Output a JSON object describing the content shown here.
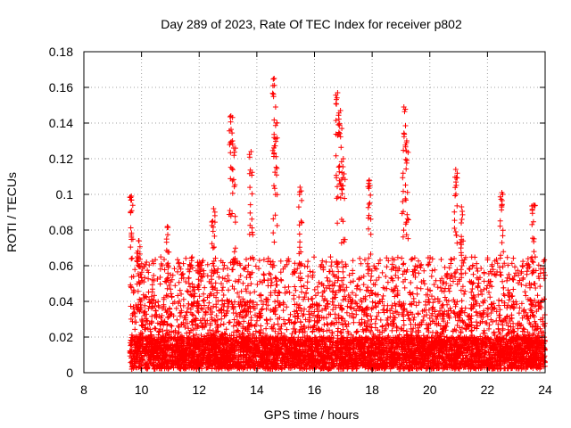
{
  "chart_data": {
    "type": "scatter",
    "title": "Day 289 of 2023, Rate Of TEC Index for receiver p802",
    "xlabel": "GPS time / hours",
    "ylabel": "ROTI / TECUs",
    "xlim": [
      8,
      24
    ],
    "ylim": [
      0,
      0.18
    ],
    "x_ticks": [
      "8",
      "10",
      "12",
      "14",
      "16",
      "18",
      "20",
      "22",
      "24"
    ],
    "y_ticks": [
      "0",
      "0.02",
      "0.04",
      "0.06",
      "0.08",
      "0.1",
      "0.12",
      "0.14",
      "0.16",
      "0.18"
    ],
    "grid": true,
    "marker": "plus",
    "series": [
      {
        "color": "#ff0000",
        "x_start": 9.6,
        "x_end": 24.0,
        "typical_range": [
          0.002,
          0.04
        ],
        "peaks": [
          {
            "x": 9.65,
            "y": 0.099
          },
          {
            "x": 9.9,
            "y": 0.074
          },
          {
            "x": 10.9,
            "y": 0.082
          },
          {
            "x": 12.0,
            "y": 0.062
          },
          {
            "x": 12.5,
            "y": 0.092
          },
          {
            "x": 13.1,
            "y": 0.144
          },
          {
            "x": 13.2,
            "y": 0.126
          },
          {
            "x": 13.8,
            "y": 0.124
          },
          {
            "x": 14.6,
            "y": 0.165
          },
          {
            "x": 14.65,
            "y": 0.149
          },
          {
            "x": 15.5,
            "y": 0.104
          },
          {
            "x": 16.8,
            "y": 0.157
          },
          {
            "x": 16.9,
            "y": 0.147
          },
          {
            "x": 17.0,
            "y": 0.12
          },
          {
            "x": 17.9,
            "y": 0.108
          },
          {
            "x": 19.1,
            "y": 0.149
          },
          {
            "x": 19.2,
            "y": 0.13
          },
          {
            "x": 20.9,
            "y": 0.114
          },
          {
            "x": 21.1,
            "y": 0.093
          },
          {
            "x": 22.5,
            "y": 0.101
          },
          {
            "x": 23.6,
            "y": 0.094
          }
        ]
      }
    ]
  }
}
